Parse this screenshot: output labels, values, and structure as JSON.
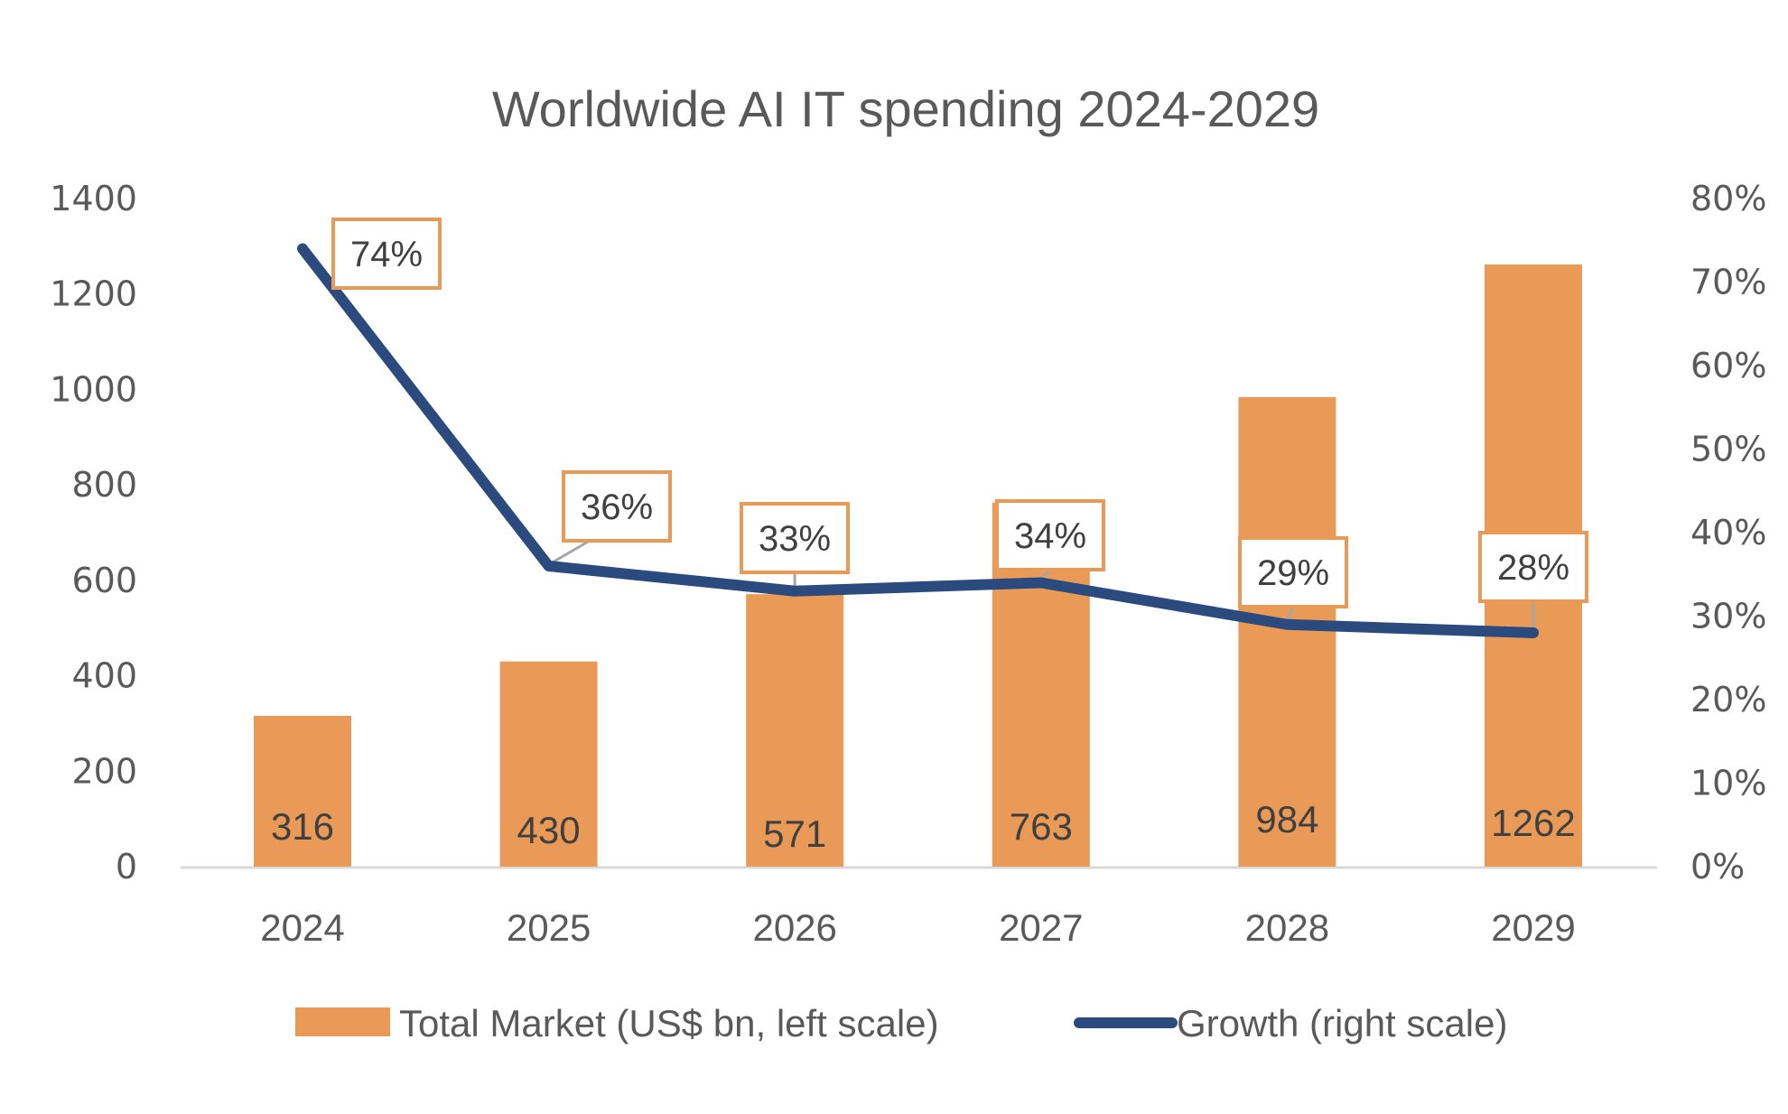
{
  "chart_data": {
    "type": "bar+line",
    "title": "Worldwide AI IT spending 2024-2029",
    "categories": [
      "2024",
      "2025",
      "2026",
      "2027",
      "2028",
      "2029"
    ],
    "series": [
      {
        "name": "Total Market (US$ bn, left scale)",
        "type": "bar",
        "axis": "left",
        "color": "#E99A56",
        "values": [
          316,
          430,
          571,
          763,
          984,
          1262
        ],
        "labels": [
          "316",
          "430",
          "571",
          "763",
          "984",
          "1262"
        ]
      },
      {
        "name": "Growth (right scale)",
        "type": "line",
        "axis": "right",
        "color": "#2B4B7E",
        "values": [
          74,
          36,
          33,
          34,
          29,
          28
        ],
        "labels": [
          "74%",
          "36%",
          "33%",
          "34%",
          "29%",
          "28%"
        ]
      }
    ],
    "left_axis": {
      "ylim": [
        0,
        1400
      ],
      "ticks": [
        "0",
        "200",
        "400",
        "600",
        "800",
        "1000",
        "1200",
        "1400"
      ]
    },
    "right_axis": {
      "ylim": [
        0,
        80
      ],
      "ticks": [
        "0%",
        "10%",
        "20%",
        "30%",
        "40%",
        "50%",
        "60%",
        "70%",
        "80%"
      ]
    },
    "xlabel": "",
    "ylabel": "",
    "grid": false,
    "legend_position": "bottom",
    "label_box_color": "#E99A56",
    "axis_line_color": "#D9D9D9"
  }
}
